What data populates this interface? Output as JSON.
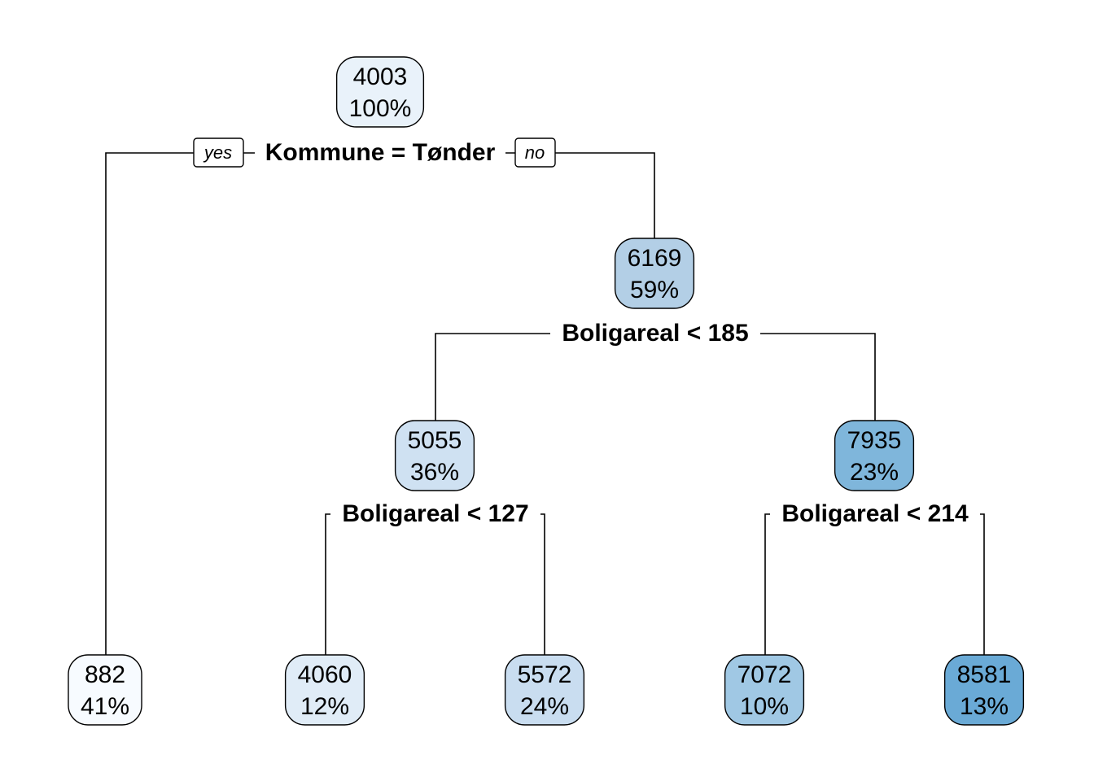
{
  "nodes": [
    {
      "value": 4003,
      "percent": "100%",
      "color": "#e9f2fa"
    },
    {
      "value": 6169,
      "percent": "59%",
      "color": "#b3cfe6"
    },
    {
      "value": 5055,
      "percent": "36%",
      "color": "#cfe1f2"
    },
    {
      "value": 7935,
      "percent": "23%",
      "color": "#7fb6db"
    },
    {
      "value": 882,
      "percent": "41%",
      "color": "#f7fbff"
    },
    {
      "value": 4060,
      "percent": "12%",
      "color": "#e0ecf7"
    },
    {
      "value": 5572,
      "percent": "24%",
      "color": "#c9ddf0"
    },
    {
      "value": 7072,
      "percent": "10%",
      "color": "#a0c8e4"
    },
    {
      "value": 8581,
      "percent": "13%",
      "color": "#6aaad6"
    }
  ],
  "splits": [
    {
      "label": "Kommune = Tønder"
    },
    {
      "label": "Boligareal < 185"
    },
    {
      "label": "Boligareal < 127"
    },
    {
      "label": "Boligareal < 214"
    }
  ],
  "branch_labels": {
    "yes": "yes",
    "no": "no"
  }
}
